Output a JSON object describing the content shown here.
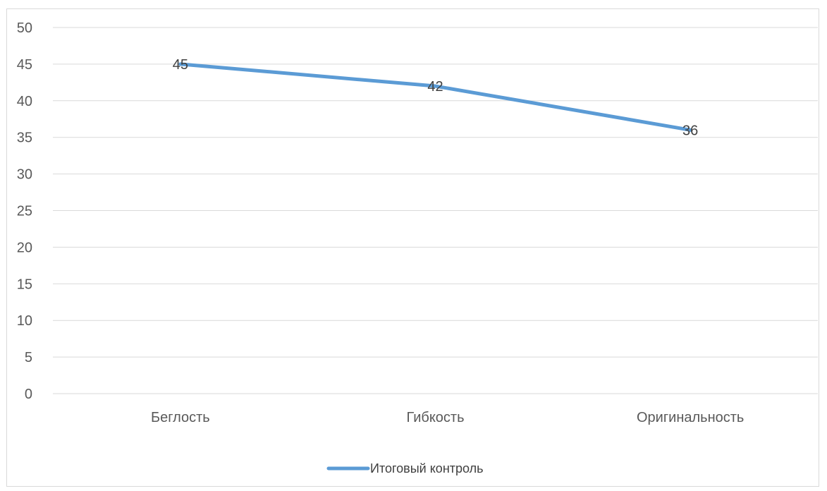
{
  "chart_data": {
    "type": "line",
    "categories": [
      "Беглость",
      "Гибкость",
      "Оригинальность"
    ],
    "series": [
      {
        "name": "Итоговый контроль",
        "values": [
          45,
          42,
          36
        ],
        "color": "#5B9BD5"
      }
    ],
    "ylim": [
      0,
      50
    ],
    "ytick_step": 5,
    "y_ticks": [
      "0",
      "5",
      "10",
      "15",
      "20",
      "25",
      "30",
      "35",
      "40",
      "45",
      "50"
    ],
    "data_labels": [
      "45",
      "42",
      "36"
    ],
    "grid": true,
    "legend_position": "bottom",
    "gridline_color": "#d9d9d9",
    "title": "",
    "xlabel": "",
    "ylabel": ""
  }
}
